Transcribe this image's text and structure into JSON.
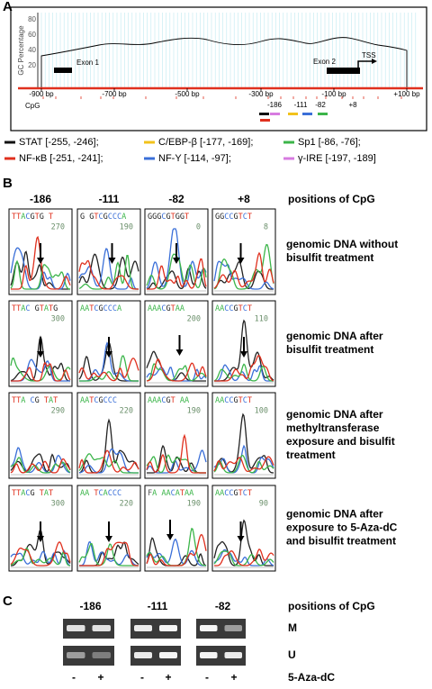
{
  "panel_a": {
    "label": "A",
    "y_axis_label": "GC Percentage",
    "y_ticks": [
      "80",
      "60",
      "40",
      "20"
    ],
    "x_ticks": [
      "-900 bp",
      "-700 bp",
      "-500 bp",
      "-300 bp",
      "-100 bp",
      "+100 bp"
    ],
    "exon1": "Exon 1",
    "exon2": "Exon 2",
    "tss": "TSS",
    "cpg_label": "CpG",
    "cpg_positions": [
      "-186",
      "-111",
      "-82",
      "+8"
    ],
    "legend": [
      {
        "text": "STAT [-255, -246];",
        "color": "#111111"
      },
      {
        "text": "NF-κB [-251, -241];",
        "color": "#e0301e"
      },
      {
        "text": "C/EBP-β [-177, -169];",
        "color": "#f2c21b"
      },
      {
        "text": "NF-Y [-114, -97];",
        "color": "#3a6fd8"
      },
      {
        "text": "Sp1 [-86, -76];",
        "color": "#3cb54a"
      },
      {
        "text": "γ-IRE [-197, -189]",
        "color": "#d77be0"
      }
    ]
  },
  "panel_b": {
    "label": "B",
    "columns": [
      "-186",
      "-111",
      "-82",
      "+8"
    ],
    "positions_label": "positions of CpG",
    "rows": [
      {
        "description": [
          "genomic DNA without",
          "bisulfit treatment"
        ],
        "cells": [
          {
            "sequence": "TTACGTG T",
            "number": "270"
          },
          {
            "sequence": "G GTCGCCCA",
            "number": "190"
          },
          {
            "sequence": "GGGCGTGGT",
            "number": "0"
          },
          {
            "sequence": "GGCCGTCT",
            "number": "8"
          }
        ]
      },
      {
        "description": [
          "genomic DNA after",
          "bisulfit treatment"
        ],
        "cells": [
          {
            "sequence": "TTAC GTATG",
            "number": "300"
          },
          {
            "sequence": "AATCGCCCA"
          },
          {
            "sequence": "AAACGTAA",
            "number": "200"
          },
          {
            "sequence": "AACCGTCT",
            "number": "110"
          }
        ]
      },
      {
        "description": [
          "genomic DNA after",
          "methyltransferase",
          "exposure and bisulfit",
          "treatment"
        ],
        "cells": [
          {
            "sequence": "TTA CG TAT",
            "number": "290"
          },
          {
            "sequence": "AATCGCCC",
            "number": "220"
          },
          {
            "sequence": "AAACGT AA",
            "number": "190"
          },
          {
            "sequence": "AACCGTCT",
            "number": "100"
          }
        ]
      },
      {
        "description": [
          "genomic DNA after",
          "exposure to 5-Aza-dC",
          "and bisulfit treatment"
        ],
        "cells": [
          {
            "sequence": "TTACG TAT",
            "number": "300"
          },
          {
            "sequence": "AA TCACCC",
            "number": "220"
          },
          {
            "sequence": "FA AACATAA",
            "number": "190"
          },
          {
            "sequence": "AACCGTCT",
            "number": "90"
          }
        ]
      }
    ]
  },
  "panel_c": {
    "label": "C",
    "columns": [
      "-186",
      "-111",
      "-82"
    ],
    "positions_label": "positions of CpG",
    "row_labels": [
      "M",
      "U"
    ],
    "lanes": [
      "-",
      "+",
      "-",
      "+",
      "-",
      "+"
    ],
    "treatment_label": "5-Aza-dC"
  }
}
